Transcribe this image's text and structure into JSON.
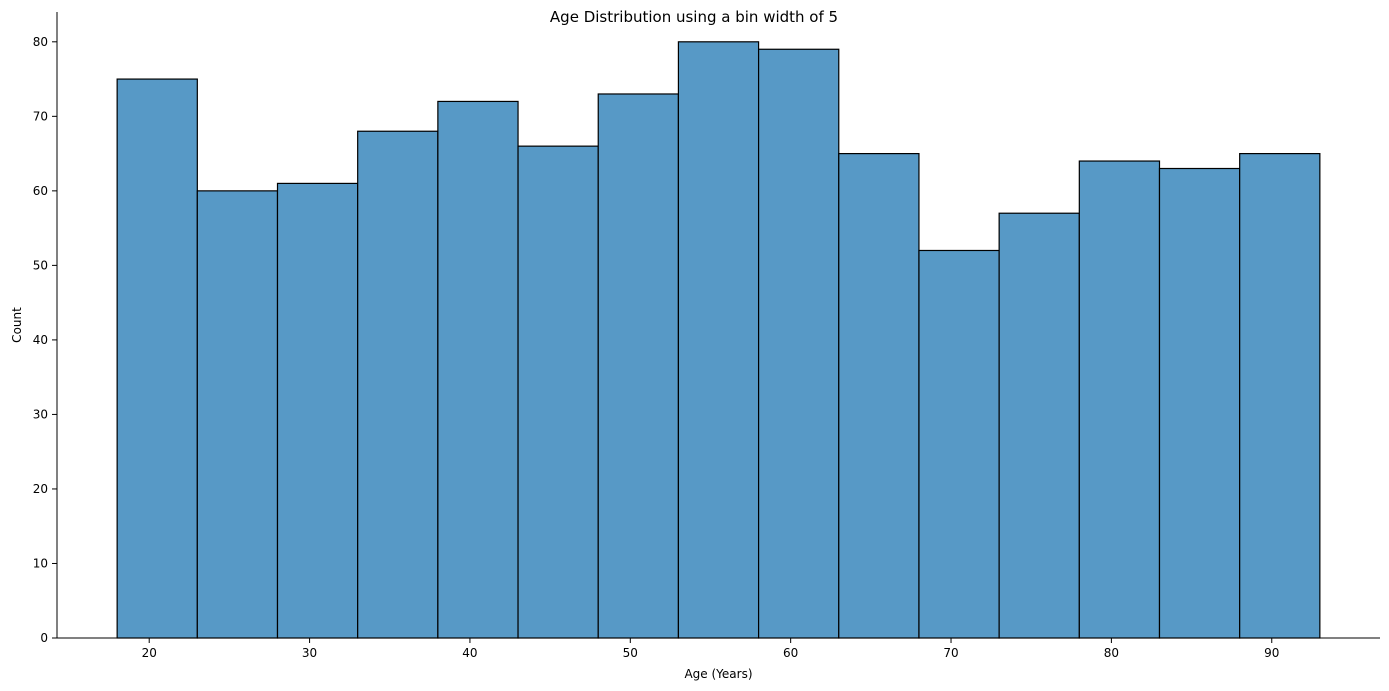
{
  "chart_data": {
    "type": "bar",
    "title": "Age Distribution using a bin width of 5",
    "xlabel": "Age (Years)",
    "ylabel": "Count",
    "bin_width": 5,
    "bin_edges": [
      18,
      23,
      28,
      33,
      38,
      43,
      48,
      53,
      58,
      63,
      68,
      73,
      78,
      83,
      88,
      93
    ],
    "values": [
      75,
      60,
      61,
      68,
      72,
      66,
      73,
      80,
      79,
      65,
      52,
      57,
      64,
      63,
      65
    ],
    "xlim": [
      14.25,
      96.75
    ],
    "ylim": [
      0,
      84
    ],
    "xticks": [
      20,
      30,
      40,
      50,
      60,
      70,
      80,
      90
    ],
    "yticks": [
      0,
      10,
      20,
      30,
      40,
      50,
      60,
      70,
      80
    ],
    "grid": false,
    "bar_color": "#5799c6",
    "edge_color": "#000000"
  }
}
